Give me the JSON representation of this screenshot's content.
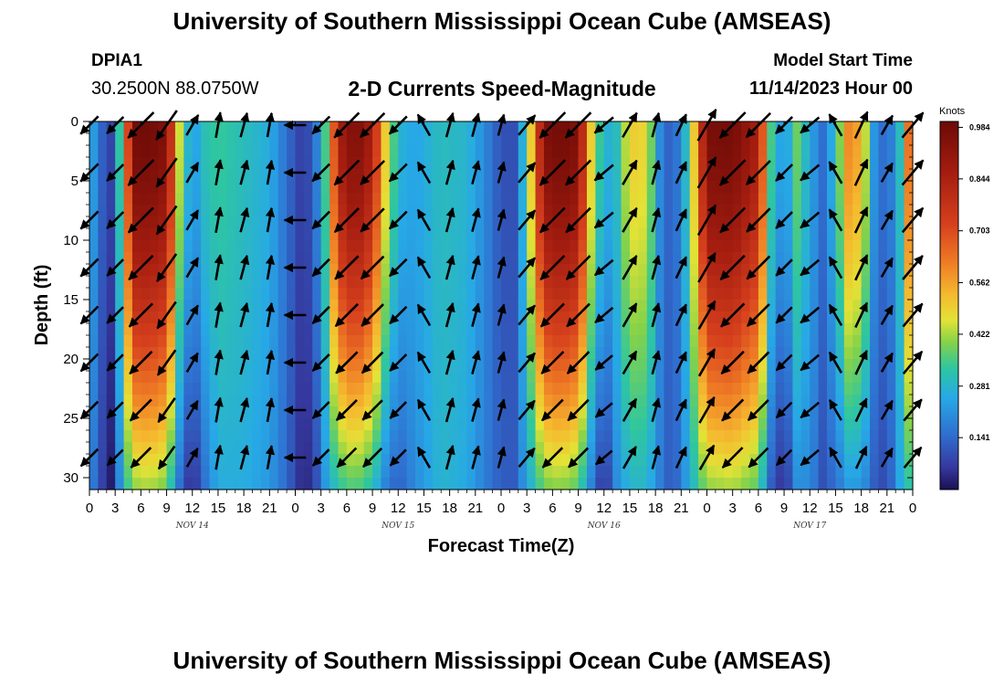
{
  "header": {
    "title": "University of Southern Mississippi Ocean Cube (AMSEAS)",
    "station_id": "DPIA1",
    "station_coords": "30.2500N  88.0750W",
    "plot_title": "2-D Currents Speed-Magnitude",
    "model_start_label": "Model Start Time",
    "model_start_value": "11/14/2023 Hour 00"
  },
  "footer": {
    "title": "University of Southern Mississippi Ocean Cube (AMSEAS)"
  },
  "chart_data": {
    "type": "heatmap",
    "title": "2-D Currents Speed-Magnitude",
    "xlabel": "Forecast Time(Z)",
    "ylabel": "Depth (ft)",
    "x_range_hours": [
      0,
      96
    ],
    "y_range_ft": [
      0,
      31
    ],
    "y_reversed": true,
    "x_tick_labels": [
      "0",
      "3",
      "6",
      "9",
      "12",
      "15",
      "18",
      "21",
      "0",
      "3",
      "6",
      "9",
      "12",
      "15",
      "18",
      "21",
      "0",
      "3",
      "6",
      "9",
      "12",
      "15",
      "18",
      "21",
      "0",
      "3",
      "6",
      "9",
      "12",
      "15",
      "18",
      "21",
      "0"
    ],
    "y_ticks": [
      0,
      5,
      10,
      15,
      20,
      25,
      30
    ],
    "day_labels": [
      {
        "label": "NOV 14",
        "hour": 12
      },
      {
        "label": "NOV 15",
        "hour": 36
      },
      {
        "label": "NOV 16",
        "hour": 60
      },
      {
        "label": "NOV 17",
        "hour": 84
      }
    ],
    "colorbar": {
      "title": "Knots",
      "ticks": [
        0.984,
        0.844,
        0.703,
        0.562,
        0.422,
        0.281,
        0.141
      ],
      "range": [
        0,
        1.0
      ]
    },
    "speed_profile_knots": [
      {
        "hour": 0,
        "surface": 0.3,
        "bottom": 0.22
      },
      {
        "hour": 1,
        "surface": 0.15,
        "bottom": 0.1
      },
      {
        "hour": 2.5,
        "surface": 0.08,
        "bottom": 0.02
      },
      {
        "hour": 4,
        "surface": 0.45,
        "bottom": 0.28
      },
      {
        "hour": 5,
        "surface": 0.98,
        "bottom": 0.4
      },
      {
        "hour": 7,
        "surface": 0.99,
        "bottom": 0.42
      },
      {
        "hour": 9,
        "surface": 0.95,
        "bottom": 0.38
      },
      {
        "hour": 10.5,
        "surface": 0.45,
        "bottom": 0.15
      },
      {
        "hour": 12,
        "surface": 0.2,
        "bottom": 0.02
      },
      {
        "hour": 13,
        "surface": 0.3,
        "bottom": 0.12
      },
      {
        "hour": 15,
        "surface": 0.34,
        "bottom": 0.26
      },
      {
        "hour": 18,
        "surface": 0.3,
        "bottom": 0.26
      },
      {
        "hour": 21,
        "surface": 0.26,
        "bottom": 0.22
      },
      {
        "hour": 23,
        "surface": 0.15,
        "bottom": 0.14
      },
      {
        "hour": 24.5,
        "surface": 0.08,
        "bottom": 0.05
      },
      {
        "hour": 26,
        "surface": 0.1,
        "bottom": 0.04
      },
      {
        "hour": 27.5,
        "surface": 0.35,
        "bottom": 0.22
      },
      {
        "hour": 29,
        "surface": 0.85,
        "bottom": 0.32
      },
      {
        "hour": 31,
        "surface": 0.97,
        "bottom": 0.36
      },
      {
        "hour": 33,
        "surface": 0.85,
        "bottom": 0.3
      },
      {
        "hour": 34.5,
        "surface": 0.5,
        "bottom": 0.18
      },
      {
        "hour": 36,
        "surface": 0.28,
        "bottom": 0.12
      },
      {
        "hour": 38,
        "surface": 0.24,
        "bottom": 0.2
      },
      {
        "hour": 41,
        "surface": 0.3,
        "bottom": 0.28
      },
      {
        "hour": 44,
        "surface": 0.28,
        "bottom": 0.25
      },
      {
        "hour": 46,
        "surface": 0.2,
        "bottom": 0.18
      },
      {
        "hour": 48,
        "surface": 0.1,
        "bottom": 0.12
      },
      {
        "hour": 49.5,
        "surface": 0.1,
        "bottom": 0.12
      },
      {
        "hour": 51,
        "surface": 0.35,
        "bottom": 0.24
      },
      {
        "hour": 53,
        "surface": 0.95,
        "bottom": 0.38
      },
      {
        "hour": 55,
        "surface": 0.99,
        "bottom": 0.4
      },
      {
        "hour": 57,
        "surface": 0.95,
        "bottom": 0.36
      },
      {
        "hour": 58.5,
        "surface": 0.5,
        "bottom": 0.18
      },
      {
        "hour": 60,
        "surface": 0.26,
        "bottom": 0.03
      },
      {
        "hour": 61.5,
        "surface": 0.3,
        "bottom": 0.2
      },
      {
        "hour": 63,
        "surface": 0.5,
        "bottom": 0.28
      },
      {
        "hour": 65,
        "surface": 0.48,
        "bottom": 0.28
      },
      {
        "hour": 66.5,
        "surface": 0.2,
        "bottom": 0.18
      },
      {
        "hour": 68,
        "surface": 0.1,
        "bottom": 0.1
      },
      {
        "hour": 70,
        "surface": 0.35,
        "bottom": 0.26
      },
      {
        "hour": 72,
        "surface": 0.97,
        "bottom": 0.4
      },
      {
        "hour": 75,
        "surface": 0.98,
        "bottom": 0.42
      },
      {
        "hour": 78,
        "surface": 0.85,
        "bottom": 0.36
      },
      {
        "hour": 79.5,
        "surface": 0.35,
        "bottom": 0.12
      },
      {
        "hour": 81,
        "surface": 0.2,
        "bottom": 0.03
      },
      {
        "hour": 82.5,
        "surface": 0.38,
        "bottom": 0.2
      },
      {
        "hour": 84,
        "surface": 0.25,
        "bottom": 0.2
      },
      {
        "hour": 85.5,
        "surface": 0.15,
        "bottom": 0.1
      },
      {
        "hour": 87,
        "surface": 0.3,
        "bottom": 0.15
      },
      {
        "hour": 88.5,
        "surface": 0.6,
        "bottom": 0.22
      },
      {
        "hour": 90,
        "surface": 0.55,
        "bottom": 0.22
      },
      {
        "hour": 91.5,
        "surface": 0.22,
        "bottom": 0.12
      },
      {
        "hour": 93,
        "surface": 0.12,
        "bottom": 0.08
      },
      {
        "hour": 94.5,
        "surface": 0.3,
        "bottom": 0.25
      },
      {
        "hour": 96,
        "surface": 0.8,
        "bottom": 0.35
      }
    ],
    "vector_times_hours": [
      0,
      3,
      6,
      9,
      12,
      15,
      18,
      21,
      24,
      27,
      30,
      33,
      36,
      39,
      42,
      45,
      48,
      51,
      54,
      57,
      60,
      63,
      66,
      69,
      72,
      75,
      78,
      81,
      84,
      87,
      90,
      93,
      96
    ],
    "vector_depths_ft": [
      0,
      4,
      8,
      12,
      16,
      20,
      24,
      28
    ],
    "vector_direction_deg": [
      225,
      225,
      225,
      215,
      30,
      10,
      15,
      10,
      270,
      225,
      225,
      225,
      225,
      330,
      15,
      15,
      15,
      40,
      225,
      225,
      230,
      30,
      15,
      25,
      30,
      225,
      225,
      225,
      230,
      330,
      25,
      30,
      40
    ]
  }
}
